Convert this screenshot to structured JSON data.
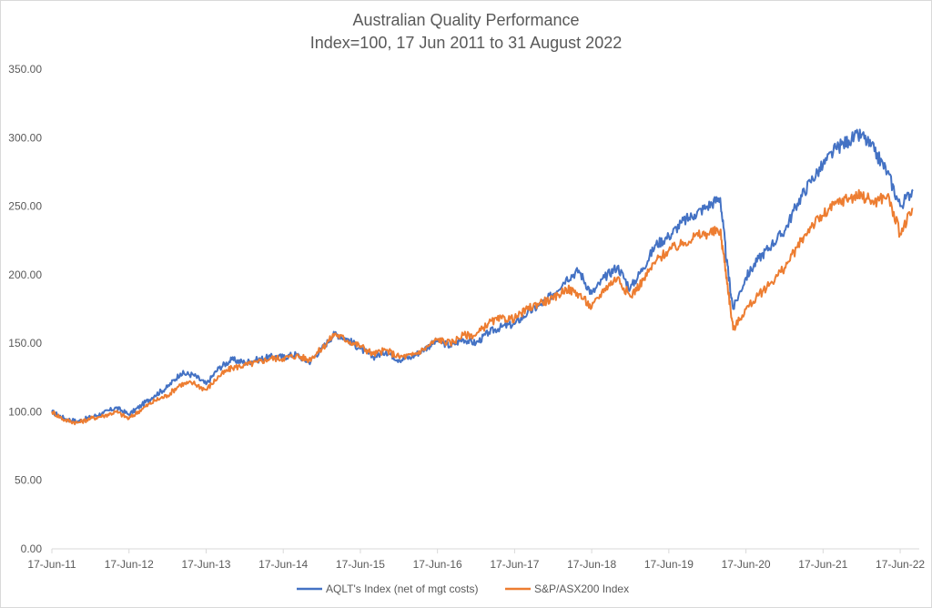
{
  "chart_data": {
    "type": "line",
    "title": "Australian Quality Performance",
    "subtitle": "Index=100, 17 Jun 2011 to 31 August 2022",
    "xlabel": "",
    "ylabel": "",
    "ylim": [
      0,
      350
    ],
    "yticks": [
      "0.00",
      "50.00",
      "100.00",
      "150.00",
      "200.00",
      "250.00",
      "300.00",
      "350.00"
    ],
    "xticks": [
      "17-Jun-11",
      "17-Jun-12",
      "17-Jun-13",
      "17-Jun-14",
      "17-Jun-15",
      "17-Jun-16",
      "17-Jun-17",
      "17-Jun-18",
      "17-Jun-19",
      "17-Jun-20",
      "17-Jun-21",
      "17-Jun-22"
    ],
    "grid": false,
    "legend_position": "bottom",
    "x": [
      "Jun-11",
      "Aug-11",
      "Oct-11",
      "Dec-11",
      "Feb-12",
      "Apr-12",
      "Jun-12",
      "Aug-12",
      "Oct-12",
      "Dec-12",
      "Feb-13",
      "Apr-13",
      "Jun-13",
      "Aug-13",
      "Oct-13",
      "Dec-13",
      "Feb-14",
      "Apr-14",
      "Jun-14",
      "Aug-14",
      "Oct-14",
      "Dec-14",
      "Feb-15",
      "Apr-15",
      "Jun-15",
      "Aug-15",
      "Oct-15",
      "Dec-15",
      "Feb-16",
      "Apr-16",
      "Jun-16",
      "Aug-16",
      "Oct-16",
      "Dec-16",
      "Feb-17",
      "Apr-17",
      "Jun-17",
      "Aug-17",
      "Oct-17",
      "Dec-17",
      "Feb-18",
      "Apr-18",
      "Jun-18",
      "Aug-18",
      "Oct-18",
      "Dec-18",
      "Feb-19",
      "Apr-19",
      "Jun-19",
      "Aug-19",
      "Oct-19",
      "Dec-19",
      "Feb-20",
      "Mar-20",
      "Apr-20",
      "Jun-20",
      "Aug-20",
      "Oct-20",
      "Dec-20",
      "Feb-21",
      "Apr-21",
      "Jun-21",
      "Aug-21",
      "Oct-21",
      "Dec-21",
      "Feb-22",
      "Apr-22",
      "Jun-22",
      "Aug-22"
    ],
    "series": [
      {
        "name": "AQLT's Index (net of mgt costs)",
        "color": "#4472c4",
        "values": [
          100,
          95,
          93,
          96,
          99,
          103,
          98,
          105,
          112,
          118,
          128,
          127,
          120,
          132,
          138,
          136,
          138,
          140,
          140,
          142,
          136,
          146,
          157,
          153,
          146,
          140,
          144,
          138,
          140,
          146,
          152,
          148,
          153,
          150,
          158,
          162,
          164,
          172,
          178,
          186,
          197,
          203,
          186,
          198,
          206,
          190,
          205,
          222,
          228,
          238,
          244,
          250,
          256,
          210,
          175,
          198,
          212,
          222,
          232,
          252,
          268,
          280,
          292,
          298,
          302,
          290,
          275,
          250,
          262
        ]
      },
      {
        "name": "S&P/ASX200 Index",
        "color": "#ed7d31",
        "values": [
          100,
          94,
          92,
          95,
          97,
          100,
          95,
          102,
          108,
          112,
          120,
          121,
          116,
          126,
          132,
          134,
          136,
          139,
          139,
          141,
          138,
          146,
          157,
          152,
          148,
          142,
          145,
          140,
          141,
          146,
          153,
          150,
          156,
          156,
          165,
          168,
          168,
          175,
          180,
          182,
          190,
          186,
          176,
          190,
          198,
          184,
          196,
          210,
          218,
          222,
          228,
          230,
          232,
          198,
          160,
          175,
          185,
          195,
          205,
          220,
          235,
          243,
          252,
          256,
          258,
          253,
          258,
          230,
          248
        ]
      }
    ]
  }
}
